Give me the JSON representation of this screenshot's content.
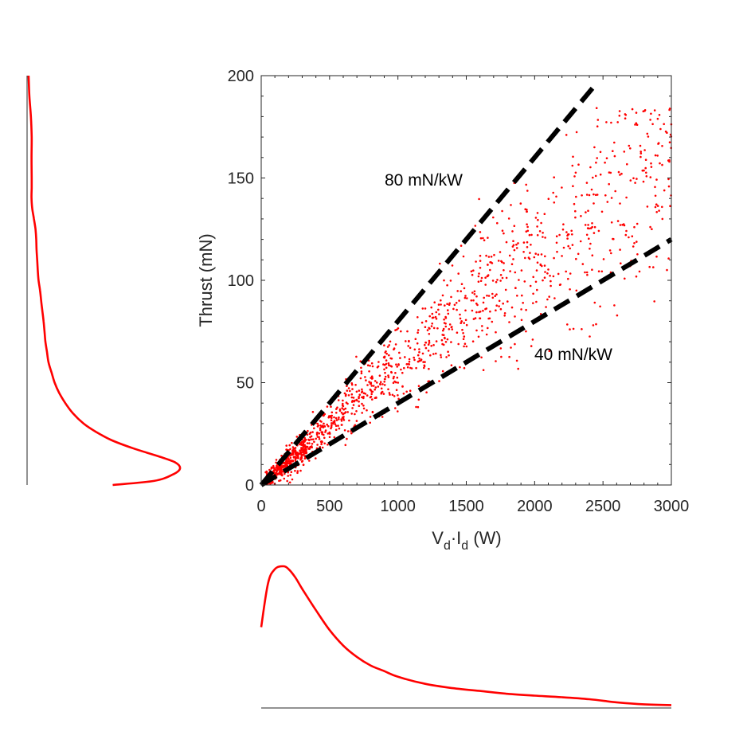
{
  "chart_data": {
    "type": "scatter",
    "x_axis": {
      "label_main": "V",
      "label_sub1": "d",
      "label_dot": "·I",
      "label_sub2": "d",
      "label_tail": " (W)",
      "lim": [
        0,
        3000
      ],
      "ticks": [
        0,
        500,
        1000,
        1500,
        2000,
        2500,
        3000
      ],
      "tick_labels": [
        "0",
        "500",
        "1000",
        "1500",
        "2000",
        "2500",
        "3000"
      ]
    },
    "y_axis": {
      "label": "Thrust (mN)",
      "lim": [
        0,
        200
      ],
      "ticks": [
        0,
        50,
        100,
        150,
        200
      ],
      "tick_labels": [
        "0",
        "50",
        "100",
        "150",
        "200"
      ]
    },
    "grid": false,
    "scatter": {
      "color": "#ff0000",
      "count": 1400,
      "x_range": [
        0,
        3000
      ],
      "y_range": [
        0,
        185
      ]
    },
    "reference_lines": [
      {
        "label": "80 mN/kW",
        "slope_mN_per_kW": 80,
        "x_range": [
          0,
          2430
        ],
        "style": "dashed",
        "color": "#000000"
      },
      {
        "label": "40 mN/kW",
        "slope_mN_per_kW": 40,
        "x_range": [
          0,
          3000
        ],
        "style": "dashed",
        "color": "#000000"
      }
    ],
    "marginal_x": {
      "color": "#ff0000",
      "x": [
        0,
        50,
        100,
        160,
        200,
        250,
        300,
        400,
        500,
        600,
        700,
        800,
        900,
        1000,
        1200,
        1400,
        1600,
        1800,
        2000,
        2200,
        2400,
        2600,
        2800,
        3000
      ],
      "density": [
        0.57,
        0.88,
        0.98,
        1.0,
        0.98,
        0.92,
        0.84,
        0.69,
        0.55,
        0.44,
        0.36,
        0.3,
        0.26,
        0.22,
        0.17,
        0.14,
        0.12,
        0.1,
        0.087,
        0.076,
        0.062,
        0.04,
        0.026,
        0.02
      ]
    },
    "marginal_y": {
      "color": "#ff0000",
      "y": [
        0,
        2,
        5,
        8,
        11,
        14,
        18,
        22,
        26,
        30,
        35,
        40,
        45,
        50,
        55,
        60,
        65,
        70,
        75,
        80,
        85,
        90,
        95,
        100,
        105,
        110,
        115,
        120,
        125,
        130,
        135,
        140,
        145,
        150,
        160,
        170,
        180,
        190,
        200
      ],
      "density": [
        0.56,
        0.83,
        0.95,
        1.0,
        0.97,
        0.86,
        0.69,
        0.55,
        0.45,
        0.37,
        0.3,
        0.25,
        0.21,
        0.18,
        0.16,
        0.14,
        0.13,
        0.12,
        0.114,
        0.108,
        0.1,
        0.092,
        0.085,
        0.075,
        0.07,
        0.066,
        0.062,
        0.06,
        0.055,
        0.045,
        0.034,
        0.029,
        0.03,
        0.03,
        0.029,
        0.03,
        0.025,
        0.015,
        0.01
      ]
    }
  }
}
